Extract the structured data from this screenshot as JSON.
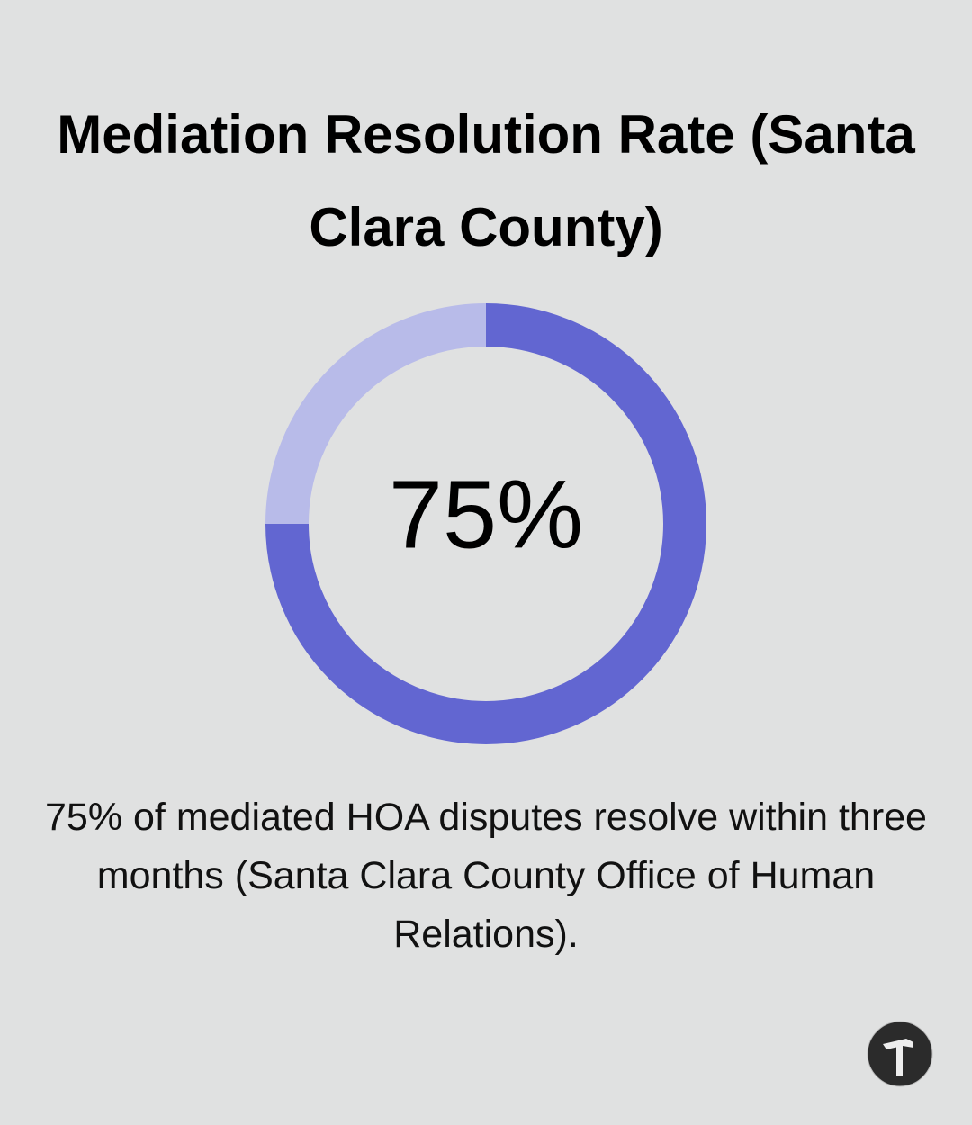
{
  "chart_data": {
    "type": "donut",
    "title": "Mediation Resolution Rate (Santa Clara County)",
    "values": [
      75,
      25
    ],
    "value_labels": [
      "75%",
      null
    ],
    "colors": [
      "#6266d1",
      "#b8bbe9"
    ],
    "caption": "75% of mediated HOA disputes resolve within three months (Santa Clara County Office of Human Relations)."
  }
}
